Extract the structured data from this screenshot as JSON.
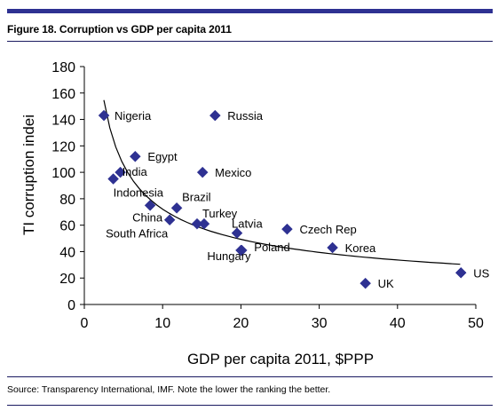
{
  "colors": {
    "accent": "#2e3192",
    "rule": "#1a1a60"
  },
  "figure": {
    "title": "Figure 18. Corruption vs GDP per capita 2011",
    "source": "Source: Transparency International, IMF.  Note the lower the ranking the better."
  },
  "chart_data": {
    "type": "scatter",
    "xlabel": "GDP per capita 2011, $PPP",
    "ylabel": "TI corruption indei",
    "xlim": [
      0,
      50
    ],
    "ylim": [
      0,
      180
    ],
    "xticks": [
      0,
      10,
      20,
      30,
      40,
      50
    ],
    "yticks": [
      0,
      20,
      40,
      60,
      80,
      100,
      120,
      140,
      160,
      180
    ],
    "grid": false,
    "legend": "none",
    "marker": "diamond",
    "points": [
      {
        "label": "Nigeria",
        "x": 2.5,
        "y": 143
      },
      {
        "label": "Russia",
        "x": 16.7,
        "y": 143
      },
      {
        "label": "Egypt",
        "x": 6.5,
        "y": 112
      },
      {
        "label": "Mexico",
        "x": 15.1,
        "y": 100
      },
      {
        "label": "India",
        "x": 4.6,
        "y": 100
      },
      {
        "label": "Indonesia",
        "x": 3.7,
        "y": 95
      },
      {
        "label": "Brazil",
        "x": 11.8,
        "y": 73
      },
      {
        "label": "China",
        "x": 8.4,
        "y": 75
      },
      {
        "label": "South Africa",
        "x": 10.9,
        "y": 64
      },
      {
        "label": "Turkey",
        "x": 15.3,
        "y": 61
      },
      {
        "label": "",
        "x": 14.4,
        "y": 61
      },
      {
        "label": "Latvia",
        "x": 19.5,
        "y": 54
      },
      {
        "label": "Czech Rep",
        "x": 25.9,
        "y": 57
      },
      {
        "label": "Korea",
        "x": 31.7,
        "y": 43
      },
      {
        "label": "Hungary",
        "x": 20.0,
        "y": 41
      },
      {
        "label": "Poland",
        "x": 20.1,
        "y": 41
      },
      {
        "label": "UK",
        "x": 35.9,
        "y": 16
      },
      {
        "label": "US",
        "x": 48.1,
        "y": 24
      }
    ],
    "trendline": {
      "type": "power",
      "a": 256,
      "b": -0.55,
      "x_range": [
        2.5,
        48.0
      ]
    }
  }
}
